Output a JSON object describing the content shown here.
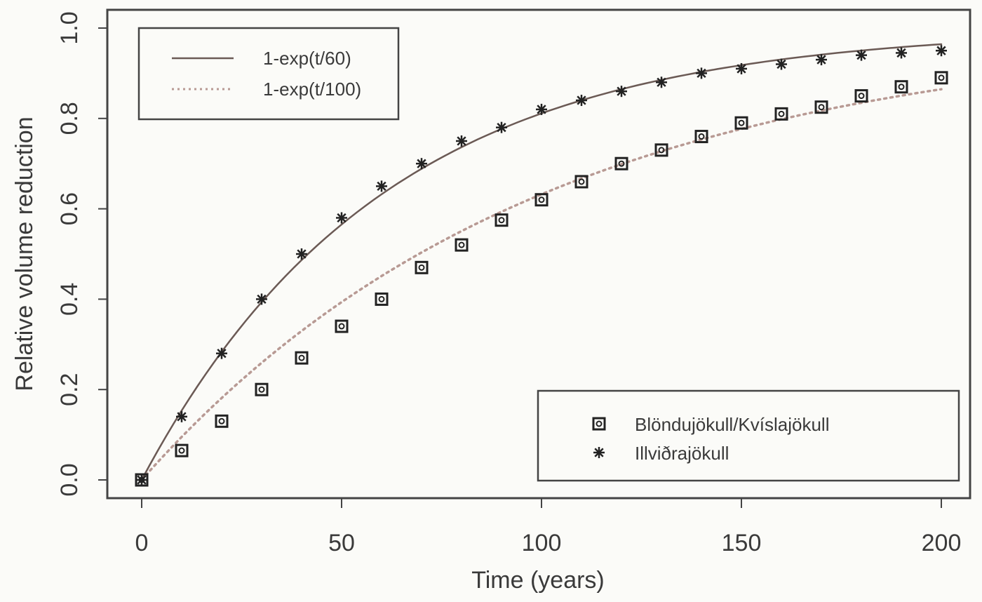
{
  "chart_data": {
    "type": "scatter",
    "title": "",
    "xlabel": "Time (years)",
    "ylabel": "Relative volume reduction",
    "xlim": [
      0,
      200
    ],
    "ylim": [
      0,
      1.0
    ],
    "xticks": [
      0,
      50,
      100,
      150,
      200
    ],
    "xtick_labels": [
      "0",
      "50",
      "100",
      "150",
      "200"
    ],
    "yticks": [
      0.0,
      0.2,
      0.4,
      0.6,
      0.8,
      1.0
    ],
    "ytick_labels": [
      "0.0",
      "0.2",
      "0.4",
      "0.6",
      "0.8",
      "1.0"
    ],
    "grid": false,
    "x": [
      0,
      10,
      20,
      30,
      40,
      50,
      60,
      70,
      80,
      90,
      100,
      110,
      120,
      130,
      140,
      150,
      160,
      170,
      180,
      190,
      200
    ],
    "series": [
      {
        "name": "Blöndujökull/Kvíslajökull",
        "marker": "boxed-circle",
        "values": [
          0.0,
          0.065,
          0.13,
          0.2,
          0.27,
          0.34,
          0.4,
          0.47,
          0.52,
          0.575,
          0.62,
          0.66,
          0.7,
          0.73,
          0.76,
          0.79,
          0.81,
          0.825,
          0.85,
          0.87,
          0.89
        ]
      },
      {
        "name": "Illviðrajökull",
        "marker": "asterisk",
        "values": [
          0.0,
          0.14,
          0.28,
          0.4,
          0.5,
          0.58,
          0.65,
          0.7,
          0.75,
          0.78,
          0.82,
          0.84,
          0.86,
          0.88,
          0.9,
          0.91,
          0.92,
          0.93,
          0.94,
          0.945,
          0.95
        ]
      }
    ],
    "curves": [
      {
        "name": "1-exp(t/60)",
        "tau": 60,
        "style": "solid"
      },
      {
        "name": "1-exp(t/100)",
        "tau": 100,
        "style": "dotted"
      }
    ],
    "legends": [
      {
        "position": "top-left",
        "entries": [
          "1-exp(t/60)",
          "1-exp(t/100)"
        ]
      },
      {
        "position": "bottom-right",
        "entries": [
          "Blöndujökull/Kvíslajökull",
          "Illviðrajökull"
        ]
      }
    ]
  },
  "colors": {
    "background": "#fbfbf8",
    "axis": "#444444",
    "solid_curve": "#6b5a55",
    "dotted_curve": "#b89a94",
    "marker": "#222222"
  }
}
